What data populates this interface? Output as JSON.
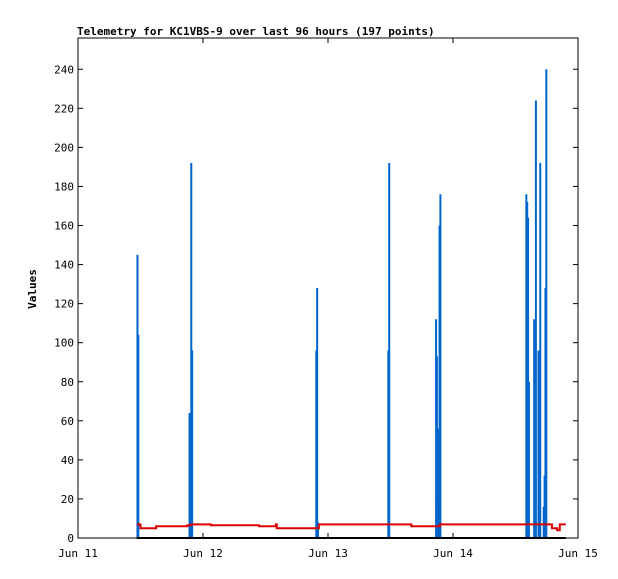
{
  "chart_data": {
    "type": "line",
    "title": "Telemetry for KC1VBS-9 over last 96 hours (197 points)",
    "xlabel": "",
    "ylabel": "Values",
    "x_ticks": [
      "Jun 11",
      "Jun 12",
      "Jun 13",
      "Jun 14",
      "Jun 15"
    ],
    "y_ticks": [
      0,
      20,
      40,
      60,
      80,
      100,
      120,
      140,
      160,
      180,
      200,
      220,
      240
    ],
    "xlim": [
      "Jun 11 00:00",
      "Jun 15 00:00"
    ],
    "ylim": [
      0,
      256
    ],
    "grid": false,
    "legend": "none",
    "colors": {
      "spikes": "#0066cc",
      "voltage": "#dd0000",
      "baseline": "#000000"
    },
    "series": [
      {
        "color": "#0066cc",
        "style": "spikes",
        "points": [
          {
            "x": "Jun 11 11:25",
            "y": 145
          },
          {
            "x": "Jun 11 11:35",
            "y": 104
          },
          {
            "x": "Jun 11 21:25",
            "y": 64
          },
          {
            "x": "Jun 11 21:35",
            "y": 32
          },
          {
            "x": "Jun 11 21:45",
            "y": 192
          },
          {
            "x": "Jun 11 21:55",
            "y": 96
          },
          {
            "x": "Jun 12 21:45",
            "y": 96
          },
          {
            "x": "Jun 12 21:55",
            "y": 128
          },
          {
            "x": "Jun 12 22:05",
            "y": 8
          },
          {
            "x": "Jun 13 11:35",
            "y": 96
          },
          {
            "x": "Jun 13 11:45",
            "y": 192
          },
          {
            "x": "Jun 13 20:45",
            "y": 112
          },
          {
            "x": "Jun 13 20:55",
            "y": 93
          },
          {
            "x": "Jun 13 21:05",
            "y": 56
          },
          {
            "x": "Jun 13 21:15",
            "y": 20
          },
          {
            "x": "Jun 13 21:25",
            "y": 160
          },
          {
            "x": "Jun 13 21:35",
            "y": 176
          },
          {
            "x": "Jun 14 14:05",
            "y": 176
          },
          {
            "x": "Jun 14 14:15",
            "y": 172
          },
          {
            "x": "Jun 14 14:25",
            "y": 164
          },
          {
            "x": "Jun 14 14:35",
            "y": 80
          },
          {
            "x": "Jun 14 15:35",
            "y": 112
          },
          {
            "x": "Jun 14 15:55",
            "y": 224
          },
          {
            "x": "Jun 14 16:25",
            "y": 96
          },
          {
            "x": "Jun 14 16:45",
            "y": 192
          },
          {
            "x": "Jun 14 17:25",
            "y": 16
          },
          {
            "x": "Jun 14 17:35",
            "y": 32
          },
          {
            "x": "Jun 14 17:45",
            "y": 128
          },
          {
            "x": "Jun 14 17:55",
            "y": 240
          }
        ]
      },
      {
        "color": "#dd0000",
        "style": "step",
        "points": [
          {
            "x": "Jun 11 11:20",
            "y": 7
          },
          {
            "x": "Jun 11 12:00",
            "y": 5
          },
          {
            "x": "Jun 11 15:00",
            "y": 6
          },
          {
            "x": "Jun 11 21:00",
            "y": 6.5
          },
          {
            "x": "Jun 11 21:45",
            "y": 7
          },
          {
            "x": "Jun 12 01:30",
            "y": 6.5
          },
          {
            "x": "Jun 12 10:45",
            "y": 6
          },
          {
            "x": "Jun 12 14:00",
            "y": 7
          },
          {
            "x": "Jun 12 14:10",
            "y": 5
          },
          {
            "x": "Jun 12 21:45",
            "y": 5
          },
          {
            "x": "Jun 12 22:15",
            "y": 7
          },
          {
            "x": "Jun 13 16:00",
            "y": 6
          },
          {
            "x": "Jun 13 21:30",
            "y": 7
          },
          {
            "x": "Jun 14 19:00",
            "y": 5
          },
          {
            "x": "Jun 14 20:00",
            "y": 4
          },
          {
            "x": "Jun 14 20:30",
            "y": 7
          },
          {
            "x": "Jun 14 21:40",
            "y": 7
          }
        ]
      },
      {
        "color": "#000000",
        "style": "line",
        "points": [
          {
            "x": "Jun 11 11:15",
            "y": 0
          },
          {
            "x": "Jun 14 21:40",
            "y": 0
          }
        ]
      }
    ]
  }
}
